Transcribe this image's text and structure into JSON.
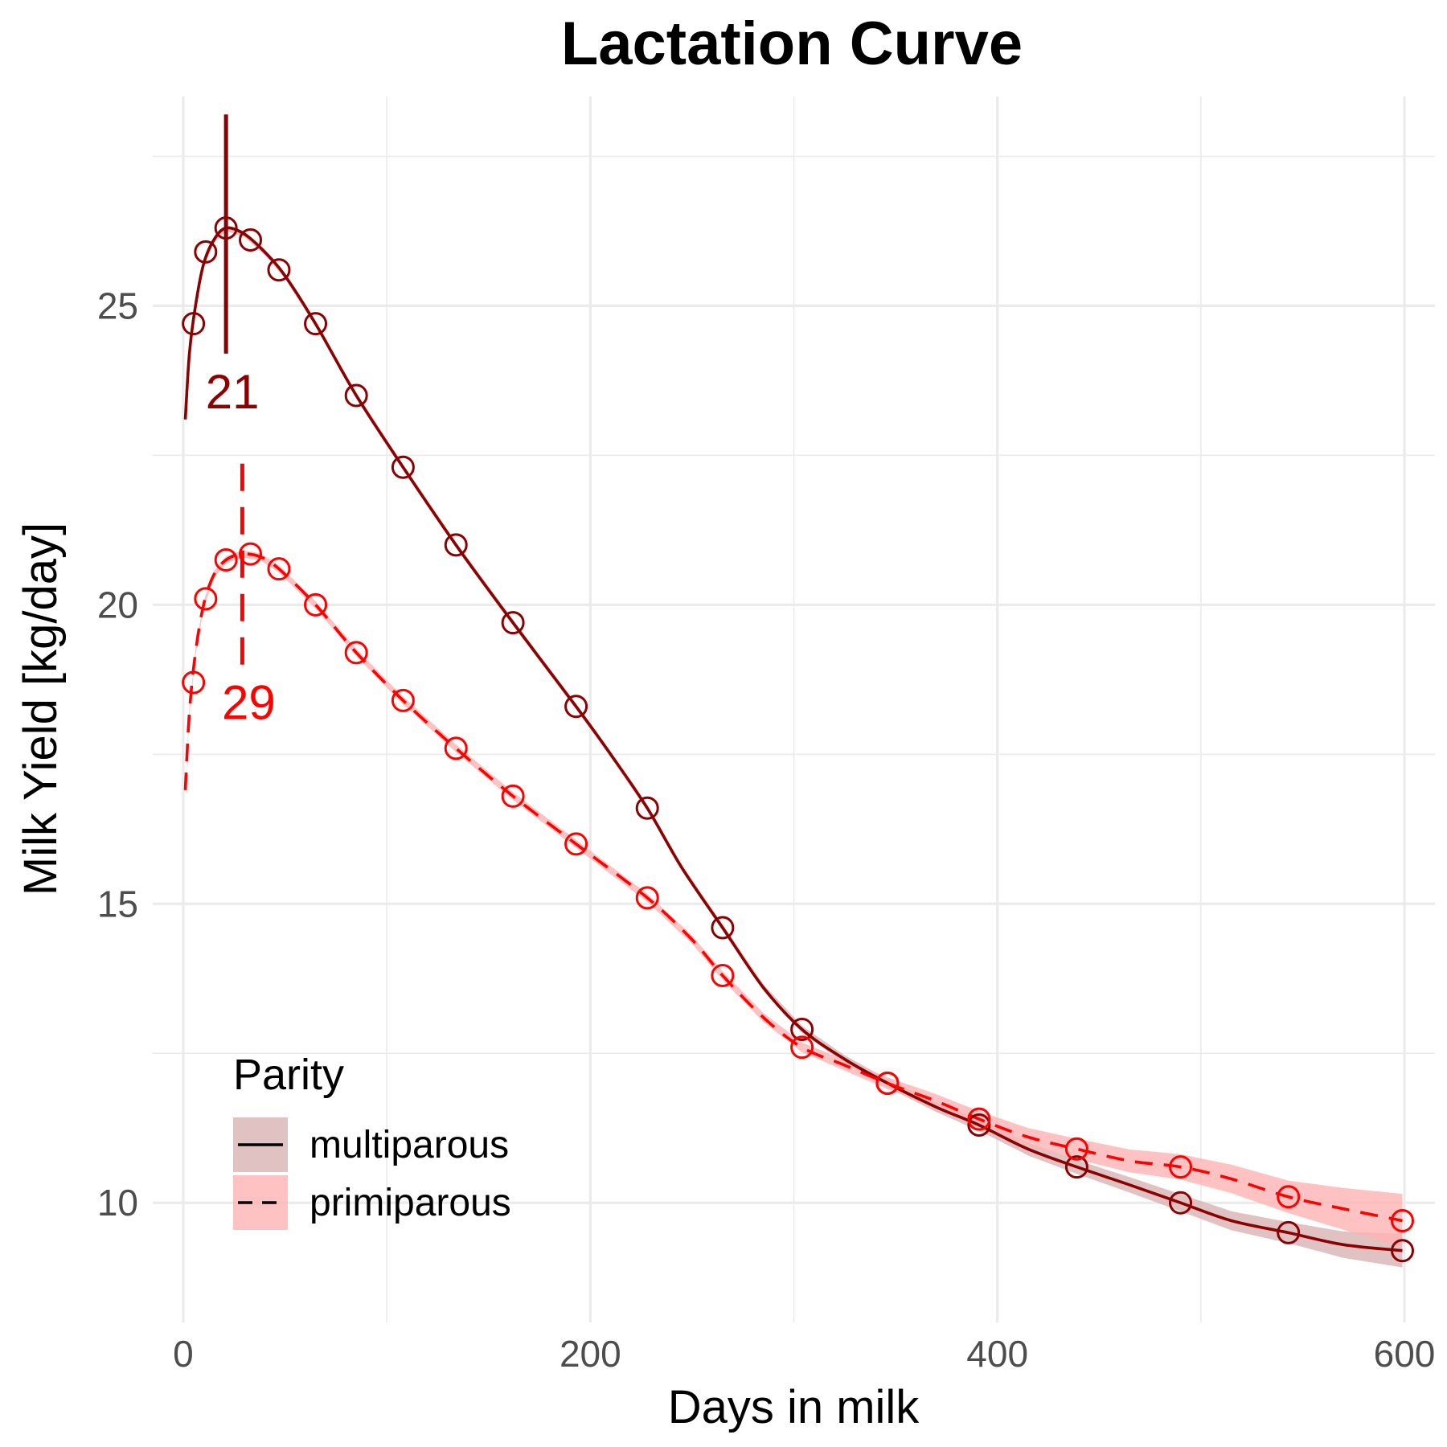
{
  "chart_data": {
    "type": "line",
    "title": "Lactation Curve",
    "xlabel": "Days in milk",
    "ylabel": "Milk Yield [kg/day]",
    "xlim": [
      -15,
      615
    ],
    "ylim": [
      8,
      28.5
    ],
    "x_ticks": [
      0,
      200,
      400,
      600
    ],
    "y_ticks": [
      10,
      15,
      20,
      25
    ],
    "grid": true,
    "legend": {
      "title": "Parity",
      "position": "bottom-left",
      "entries": [
        "multiparous",
        "primiparous"
      ]
    },
    "series": [
      {
        "name": "multiparous",
        "color": "#8b0000",
        "band_color": "#d9b3b3",
        "dash": "solid",
        "peak_day": 21,
        "peak_label": "21",
        "peak_line_y": [
          24.2,
          28.2
        ],
        "points": [
          {
            "x": 5,
            "y": 24.7
          },
          {
            "x": 11,
            "y": 25.9
          },
          {
            "x": 21,
            "y": 26.3
          },
          {
            "x": 33,
            "y": 26.1
          },
          {
            "x": 47,
            "y": 25.6
          },
          {
            "x": 65,
            "y": 24.7
          },
          {
            "x": 85,
            "y": 23.5
          },
          {
            "x": 108,
            "y": 22.3
          },
          {
            "x": 134,
            "y": 21.0
          },
          {
            "x": 162,
            "y": 19.7
          },
          {
            "x": 193,
            "y": 18.3
          },
          {
            "x": 228,
            "y": 16.6
          },
          {
            "x": 265,
            "y": 14.6
          },
          {
            "x": 304,
            "y": 12.9
          },
          {
            "x": 346,
            "y": 12.0
          },
          {
            "x": 391,
            "y": 11.3
          },
          {
            "x": 439,
            "y": 10.6
          },
          {
            "x": 490,
            "y": 10.0
          },
          {
            "x": 543,
            "y": 9.5
          },
          {
            "x": 599,
            "y": 9.2
          }
        ],
        "fit": [
          [
            1,
            23.1
          ],
          [
            3,
            24.2
          ],
          [
            6,
            25.0
          ],
          [
            10,
            25.7
          ],
          [
            15,
            26.1
          ],
          [
            21,
            26.3
          ],
          [
            30,
            26.2
          ],
          [
            40,
            25.9
          ],
          [
            50,
            25.5
          ],
          [
            65,
            24.7
          ],
          [
            85,
            23.5
          ],
          [
            108,
            22.3
          ],
          [
            134,
            21.0
          ],
          [
            162,
            19.7
          ],
          [
            193,
            18.3
          ],
          [
            210,
            17.5
          ],
          [
            228,
            16.6
          ],
          [
            245,
            15.6
          ],
          [
            265,
            14.6
          ],
          [
            285,
            13.6
          ],
          [
            304,
            12.9
          ],
          [
            325,
            12.4
          ],
          [
            346,
            12.0
          ],
          [
            370,
            11.6
          ],
          [
            391,
            11.3
          ],
          [
            415,
            10.9
          ],
          [
            439,
            10.6
          ],
          [
            465,
            10.3
          ],
          [
            490,
            10.0
          ],
          [
            515,
            9.7
          ],
          [
            543,
            9.5
          ],
          [
            570,
            9.3
          ],
          [
            599,
            9.2
          ]
        ],
        "band_halfwidth": [
          [
            1,
            0.05
          ],
          [
            250,
            0.05
          ],
          [
            300,
            0.06
          ],
          [
            350,
            0.07
          ],
          [
            400,
            0.1
          ],
          [
            450,
            0.12
          ],
          [
            500,
            0.15
          ],
          [
            550,
            0.18
          ],
          [
            599,
            0.28
          ]
        ]
      },
      {
        "name": "primiparous",
        "color": "#ff0000",
        "band_color": "#ffb3b3",
        "dash": "dashed",
        "peak_day": 29,
        "peak_label": "29",
        "peak_line_y": [
          19.0,
          22.5
        ],
        "points": [
          {
            "x": 5,
            "y": 18.7
          },
          {
            "x": 11,
            "y": 20.1
          },
          {
            "x": 21,
            "y": 20.75
          },
          {
            "x": 33,
            "y": 20.85
          },
          {
            "x": 47,
            "y": 20.6
          },
          {
            "x": 65,
            "y": 20.0
          },
          {
            "x": 85,
            "y": 19.2
          },
          {
            "x": 108,
            "y": 18.4
          },
          {
            "x": 134,
            "y": 17.6
          },
          {
            "x": 162,
            "y": 16.8
          },
          {
            "x": 193,
            "y": 16.0
          },
          {
            "x": 228,
            "y": 15.1
          },
          {
            "x": 265,
            "y": 13.8
          },
          {
            "x": 304,
            "y": 12.6
          },
          {
            "x": 346,
            "y": 12.0
          },
          {
            "x": 391,
            "y": 11.4
          },
          {
            "x": 439,
            "y": 10.9
          },
          {
            "x": 490,
            "y": 10.6
          },
          {
            "x": 543,
            "y": 10.1
          },
          {
            "x": 599,
            "y": 9.7
          }
        ],
        "fit": [
          [
            1,
            16.9
          ],
          [
            3,
            18.2
          ],
          [
            6,
            19.2
          ],
          [
            10,
            20.0
          ],
          [
            15,
            20.5
          ],
          [
            21,
            20.75
          ],
          [
            29,
            20.85
          ],
          [
            38,
            20.8
          ],
          [
            47,
            20.6
          ],
          [
            65,
            20.0
          ],
          [
            85,
            19.2
          ],
          [
            108,
            18.4
          ],
          [
            134,
            17.6
          ],
          [
            162,
            16.8
          ],
          [
            193,
            16.0
          ],
          [
            228,
            15.1
          ],
          [
            250,
            14.4
          ],
          [
            265,
            13.8
          ],
          [
            285,
            13.1
          ],
          [
            304,
            12.6
          ],
          [
            325,
            12.3
          ],
          [
            346,
            12.0
          ],
          [
            370,
            11.7
          ],
          [
            391,
            11.4
          ],
          [
            415,
            11.1
          ],
          [
            439,
            10.9
          ],
          [
            465,
            10.7
          ],
          [
            490,
            10.6
          ],
          [
            515,
            10.4
          ],
          [
            543,
            10.1
          ],
          [
            570,
            9.9
          ],
          [
            599,
            9.7
          ]
        ],
        "band_halfwidth": [
          [
            1,
            0.06
          ],
          [
            250,
            0.07
          ],
          [
            300,
            0.08
          ],
          [
            350,
            0.1
          ],
          [
            400,
            0.14
          ],
          [
            450,
            0.18
          ],
          [
            500,
            0.22
          ],
          [
            550,
            0.28
          ],
          [
            599,
            0.45
          ]
        ]
      }
    ]
  }
}
